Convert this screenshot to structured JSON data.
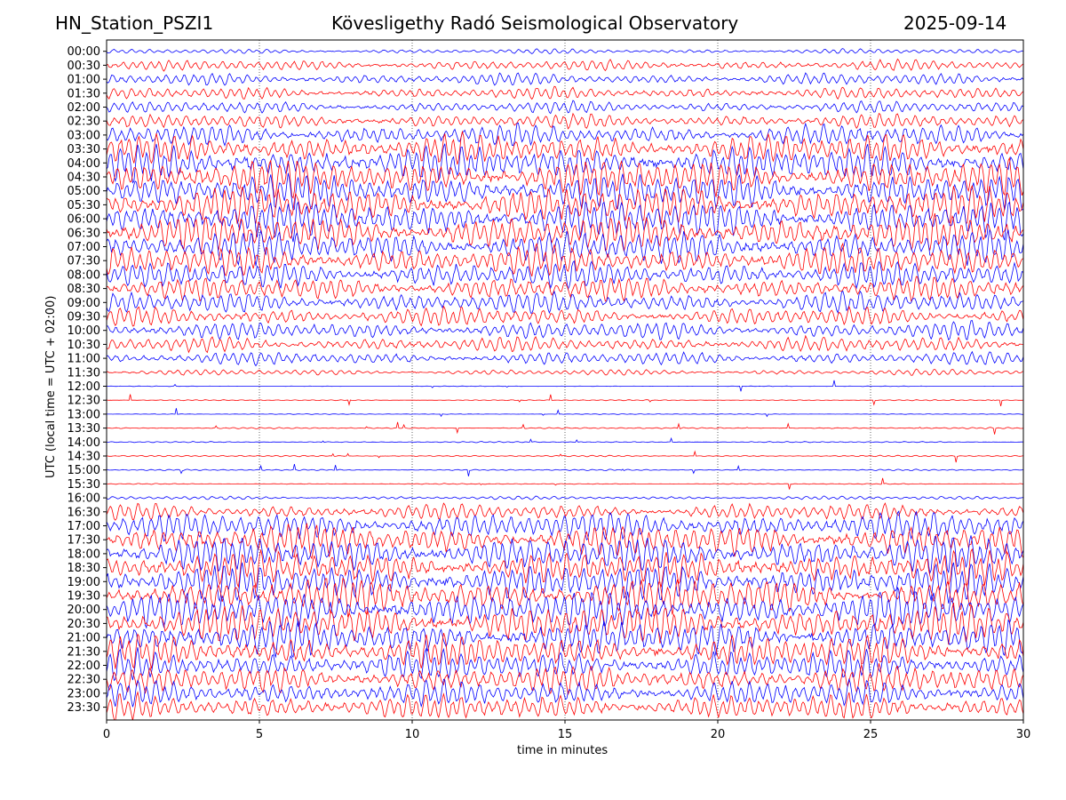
{
  "header": {
    "station": "HN_Station_PSZI1",
    "title": "Kövesligethy Radó Seismological Observatory",
    "date": "2025-09-14"
  },
  "chart_data": {
    "type": "line",
    "title": "Kövesligethy Radó Seismological Observatory",
    "xlabel": "time in minutes",
    "ylabel": "UTC (local time = UTC + 02:00)",
    "xlim": [
      0,
      30
    ],
    "xticks": [
      0,
      5,
      10,
      15,
      20,
      25,
      30
    ],
    "grid": "vertical dotted at x ticks",
    "row_labels": [
      "00:00",
      "00:30",
      "01:00",
      "01:30",
      "02:00",
      "02:30",
      "03:00",
      "03:30",
      "04:00",
      "04:30",
      "05:00",
      "05:30",
      "06:00",
      "06:30",
      "07:00",
      "07:30",
      "08:00",
      "08:30",
      "09:00",
      "09:30",
      "10:00",
      "10:30",
      "11:00",
      "11:30",
      "12:00",
      "12:30",
      "13:00",
      "13:30",
      "14:00",
      "14:30",
      "15:00",
      "15:30",
      "16:00",
      "16:30",
      "17:00",
      "17:30",
      "18:00",
      "18:30",
      "19:00",
      "19:30",
      "20:00",
      "20:30",
      "21:00",
      "21:30",
      "22:00",
      "22:30",
      "23:00",
      "23:30"
    ],
    "row_colors": [
      "#0000ff",
      "#ff0000"
    ],
    "relative_amplitude": [
      0.4,
      0.9,
      1.0,
      1.0,
      1.0,
      1.2,
      1.8,
      2.6,
      3.0,
      3.2,
      3.2,
      3.2,
      3.2,
      3.0,
      2.8,
      2.6,
      2.3,
      2.0,
      1.8,
      1.6,
      1.5,
      1.3,
      1.1,
      0.5,
      0.05,
      0.08,
      0.06,
      0.12,
      0.1,
      0.12,
      0.12,
      0.08,
      0.3,
      1.4,
      2.4,
      2.8,
      3.0,
      3.0,
      3.2,
      3.2,
      3.2,
      3.2,
      3.0,
      2.8,
      2.6,
      2.3,
      2.2,
      2.2
    ]
  }
}
